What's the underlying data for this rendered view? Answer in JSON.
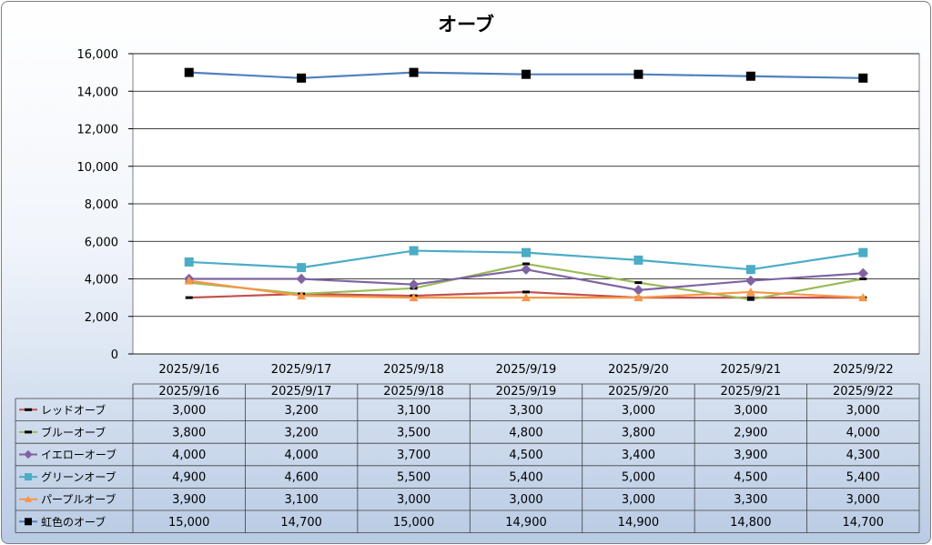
{
  "chart_data": {
    "type": "line",
    "title": "オーブ",
    "xlabel": "",
    "ylabel": "",
    "ylim": [
      0,
      16000
    ],
    "yticks": [
      0,
      2000,
      4000,
      6000,
      8000,
      10000,
      12000,
      14000,
      16000
    ],
    "ytick_labels": [
      "0",
      "2,000",
      "4,000",
      "6,000",
      "8,000",
      "10,000",
      "12,000",
      "14,000",
      "16,000"
    ],
    "grid": true,
    "legend": "data-table",
    "categories": [
      "2025/9/16",
      "2025/9/17",
      "2025/9/18",
      "2025/9/19",
      "2025/9/20",
      "2025/9/21",
      "2025/9/22"
    ],
    "series": [
      {
        "name": "レッドオーブ",
        "values": [
          3000,
          3200,
          3100,
          3300,
          3000,
          3000,
          3000
        ],
        "labels": [
          "3,000",
          "3,200",
          "3,100",
          "3,300",
          "3,000",
          "3,000",
          "3,000"
        ],
        "color": "#c0504d",
        "marker": "dash"
      },
      {
        "name": "ブルーオーブ",
        "values": [
          3800,
          3200,
          3500,
          4800,
          3800,
          2900,
          4000
        ],
        "labels": [
          "3,800",
          "3,200",
          "3,500",
          "4,800",
          "3,800",
          "2,900",
          "4,000"
        ],
        "color": "#9bbb59",
        "marker": "dash"
      },
      {
        "name": "イエローオーブ",
        "values": [
          4000,
          4000,
          3700,
          4500,
          3400,
          3900,
          4300
        ],
        "labels": [
          "4,000",
          "4,000",
          "3,700",
          "4,500",
          "3,400",
          "3,900",
          "4,300"
        ],
        "color": "#8064a2",
        "marker": "diamond"
      },
      {
        "name": "グリーンオーブ",
        "values": [
          4900,
          4600,
          5500,
          5400,
          5000,
          4500,
          5400
        ],
        "labels": [
          "4,900",
          "4,600",
          "5,500",
          "5,400",
          "5,000",
          "4,500",
          "5,400"
        ],
        "color": "#4bacc6",
        "marker": "square"
      },
      {
        "name": "パープルオーブ",
        "values": [
          3900,
          3100,
          3000,
          3000,
          3000,
          3300,
          3000
        ],
        "labels": [
          "3,900",
          "3,100",
          "3,000",
          "3,000",
          "3,000",
          "3,300",
          "3,000"
        ],
        "color": "#f79646",
        "marker": "triangle"
      },
      {
        "name": "虹色のオーブ",
        "values": [
          15000,
          14700,
          15000,
          14900,
          14900,
          14800,
          14700
        ],
        "labels": [
          "15,000",
          "14,700",
          "15,000",
          "14,900",
          "14,900",
          "14,800",
          "14,700"
        ],
        "color": "#4f81bd",
        "marker": "square-black"
      }
    ]
  }
}
